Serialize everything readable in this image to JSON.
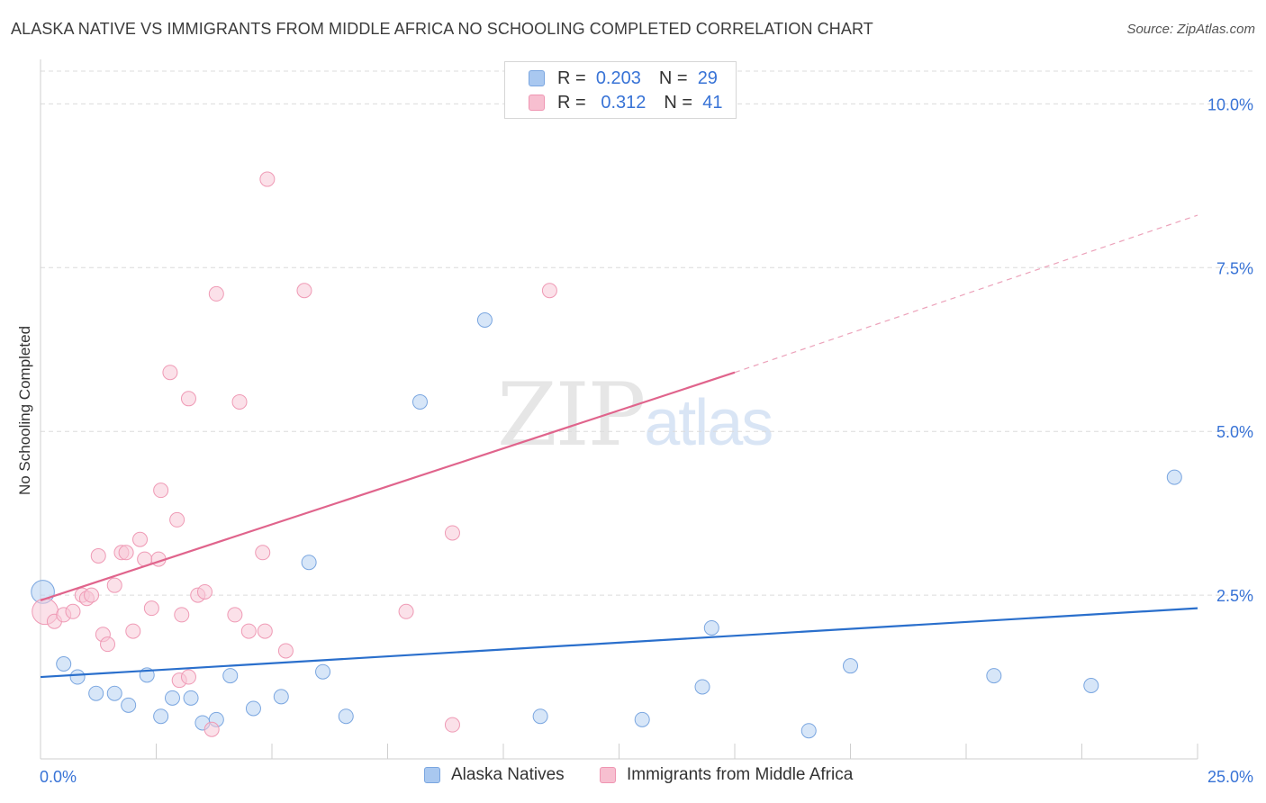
{
  "title": "ALASKA NATIVE VS IMMIGRANTS FROM MIDDLE AFRICA NO SCHOOLING COMPLETED CORRELATION CHART",
  "source": "Source: ZipAtlas.com",
  "watermark": {
    "zip": "ZIP",
    "atlas": "atlas"
  },
  "legend": {
    "rows": [
      {
        "r_label": "R =",
        "r_value": "0.203",
        "n_label": "N =",
        "n_value": "29",
        "color": "#a9c8f0",
        "border": "#7aa6e0"
      },
      {
        "r_label": "R =",
        "r_value": "0.312",
        "n_label": "N =",
        "n_value": "41",
        "color": "#f7bfd0",
        "border": "#ef95b2"
      }
    ]
  },
  "bottom_legend": {
    "series1": "Alaska Natives",
    "series2": "Immigrants from Middle Africa"
  },
  "chart_data": {
    "type": "scatter",
    "title": "ALASKA NATIVE VS IMMIGRANTS FROM MIDDLE AFRICA NO SCHOOLING COMPLETED CORRELATION CHART",
    "xlabel": "",
    "ylabel": "No Schooling Completed",
    "xlim": [
      0,
      25
    ],
    "ylim": [
      0,
      10.5
    ],
    "x_tick_labels": [
      "0.0%",
      "25.0%"
    ],
    "y_ticks": [
      2.5,
      5.0,
      7.5,
      10.0
    ],
    "y_tick_labels": [
      "2.5%",
      "5.0%",
      "7.5%",
      "10.0%"
    ],
    "x_minor_ticks": [
      2.5,
      5,
      7.5,
      10,
      12.5,
      15,
      17.5,
      20,
      22.5,
      25
    ],
    "grid": "horizontal dashed",
    "series": [
      {
        "name": "Alaska Natives",
        "fill": "#b7d1f3",
        "stroke": "#7aa6e0",
        "trend_color": "#2a6fcc",
        "trend": {
          "x0": 0,
          "y0": 1.25,
          "x1": 25,
          "y1": 2.3
        },
        "points": [
          [
            0.05,
            2.55,
            1.6
          ],
          [
            0.5,
            1.45,
            1
          ],
          [
            0.8,
            1.25,
            1
          ],
          [
            1.2,
            1.0,
            1
          ],
          [
            1.6,
            1.0,
            1
          ],
          [
            1.9,
            0.82,
            1
          ],
          [
            2.3,
            1.28,
            1
          ],
          [
            2.6,
            0.65,
            1
          ],
          [
            2.85,
            0.93,
            1
          ],
          [
            3.25,
            0.93,
            1
          ],
          [
            3.5,
            0.55,
            1
          ],
          [
            3.8,
            0.6,
            1
          ],
          [
            4.1,
            1.27,
            1
          ],
          [
            4.6,
            0.77,
            1
          ],
          [
            5.2,
            0.95,
            1
          ],
          [
            5.8,
            3.0,
            1
          ],
          [
            6.1,
            1.33,
            1
          ],
          [
            6.6,
            0.65,
            1
          ],
          [
            8.2,
            5.45,
            1
          ],
          [
            9.6,
            6.7,
            1
          ],
          [
            10.8,
            0.65,
            1
          ],
          [
            13.0,
            0.6,
            1
          ],
          [
            14.3,
            1.1,
            1
          ],
          [
            14.5,
            2.0,
            1
          ],
          [
            16.6,
            0.43,
            1
          ],
          [
            17.5,
            1.42,
            1
          ],
          [
            20.6,
            1.27,
            1
          ],
          [
            22.7,
            1.12,
            1
          ],
          [
            24.5,
            4.3,
            1
          ]
        ]
      },
      {
        "name": "Immigrants from Middle Africa",
        "fill": "#f8c9d7",
        "stroke": "#ef9ab5",
        "trend_color": "#e0648c",
        "trend": {
          "x0": 0,
          "y0": 2.42,
          "x1": 15.0,
          "y1": 5.9
        },
        "trend_dashed": {
          "x0": 15.0,
          "y0": 5.9,
          "x1": 25,
          "y1": 8.3
        },
        "points": [
          [
            0.1,
            2.25,
            1.8
          ],
          [
            0.3,
            2.1,
            1
          ],
          [
            0.5,
            2.2,
            1
          ],
          [
            0.7,
            2.25,
            1
          ],
          [
            0.9,
            2.5,
            1
          ],
          [
            1.0,
            2.45,
            1
          ],
          [
            1.1,
            2.5,
            1
          ],
          [
            1.25,
            3.1,
            1
          ],
          [
            1.35,
            1.9,
            1
          ],
          [
            1.45,
            1.75,
            1
          ],
          [
            1.6,
            2.65,
            1
          ],
          [
            1.75,
            3.15,
            1
          ],
          [
            1.85,
            3.15,
            1
          ],
          [
            2.0,
            1.95,
            1
          ],
          [
            2.15,
            3.35,
            1
          ],
          [
            2.25,
            3.05,
            1
          ],
          [
            2.4,
            2.3,
            1
          ],
          [
            2.55,
            3.05,
            1
          ],
          [
            2.6,
            4.1,
            1
          ],
          [
            2.8,
            5.9,
            1
          ],
          [
            2.95,
            3.65,
            1
          ],
          [
            3.0,
            1.2,
            1
          ],
          [
            3.2,
            1.25,
            1
          ],
          [
            3.2,
            5.5,
            1
          ],
          [
            3.4,
            2.5,
            1
          ],
          [
            3.55,
            2.55,
            1
          ],
          [
            3.7,
            0.45,
            1
          ],
          [
            3.8,
            7.1,
            1
          ],
          [
            4.2,
            2.2,
            1
          ],
          [
            4.3,
            5.45,
            1
          ],
          [
            4.5,
            1.95,
            1
          ],
          [
            4.8,
            3.15,
            1
          ],
          [
            4.85,
            1.95,
            1
          ],
          [
            4.9,
            8.85,
            1
          ],
          [
            5.7,
            7.15,
            1
          ],
          [
            7.9,
            2.25,
            1
          ],
          [
            8.9,
            3.45,
            1
          ],
          [
            8.9,
            0.52,
            1
          ],
          [
            11.0,
            7.15,
            1
          ],
          [
            5.3,
            1.65,
            1
          ],
          [
            3.05,
            2.2,
            1
          ]
        ]
      }
    ]
  }
}
